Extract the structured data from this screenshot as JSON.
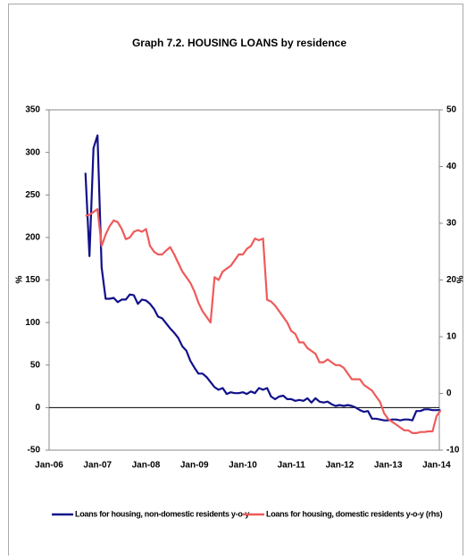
{
  "chart_data": {
    "type": "line",
    "title": "Graph 7.2. HOUSING LOANS by residence",
    "ylabel": "%",
    "y2label": "%",
    "categories": [
      "Jan-06",
      null,
      null,
      null,
      null,
      null,
      null,
      null,
      null,
      null,
      null,
      null,
      "Jan-07",
      null,
      null,
      null,
      null,
      null,
      null,
      null,
      null,
      null,
      null,
      null,
      "Jan-08",
      null,
      null,
      null,
      null,
      null,
      null,
      null,
      null,
      null,
      null,
      null,
      "Jan-09",
      null,
      null,
      null,
      null,
      null,
      null,
      null,
      null,
      null,
      null,
      null,
      "Jan-10",
      null,
      null,
      null,
      null,
      null,
      null,
      null,
      null,
      null,
      null,
      null,
      "Jan-11",
      null,
      null,
      null,
      null,
      null,
      null,
      null,
      null,
      null,
      null,
      null,
      "Jan-12",
      null,
      null,
      null,
      null,
      null,
      null,
      null,
      null,
      null,
      null,
      null,
      "Jan-13",
      null,
      null,
      null,
      null,
      null,
      null,
      null,
      null,
      null,
      null,
      null,
      "Jan-14",
      null
    ],
    "series": [
      {
        "name": "Loans for housing, non-domestic residents y-o-y",
        "color": "#10108a",
        "axis": "y",
        "values": [
          null,
          null,
          null,
          null,
          null,
          null,
          null,
          null,
          null,
          276,
          178,
          305,
          320,
          165,
          128,
          128,
          129,
          124,
          127,
          127,
          133,
          132,
          122,
          127,
          126,
          122,
          116,
          107,
          105,
          99,
          93,
          88,
          82,
          72,
          67,
          55,
          47,
          40,
          40,
          36,
          30,
          24,
          21,
          23,
          16,
          18,
          17,
          17,
          18,
          16,
          19,
          17,
          23,
          21,
          23,
          13,
          10,
          13,
          14,
          10,
          10,
          8,
          9,
          8,
          11,
          6,
          11,
          7,
          6,
          7,
          4,
          2,
          3,
          2,
          3,
          2,
          0,
          -3,
          -5,
          -4,
          -13,
          -13,
          -14,
          -15,
          -15,
          -14,
          -14,
          -15,
          -14,
          -14,
          -15,
          -4,
          -4,
          -2,
          -2,
          -3,
          -3,
          -3
        ]
      },
      {
        "name": "Loans for housing, domestic residents y-o-y (rhs)",
        "color": "#f05a5a",
        "axis": "y2",
        "values": [
          null,
          null,
          null,
          null,
          null,
          null,
          null,
          null,
          null,
          31.3,
          31.5,
          32,
          32.5,
          26,
          28,
          29.5,
          30.5,
          30.2,
          29,
          27.2,
          27.5,
          28.5,
          28.8,
          28.5,
          29,
          26,
          25,
          24.5,
          24.5,
          25.2,
          25.8,
          24.5,
          23,
          21.5,
          20.5,
          19.5,
          18,
          16,
          14.5,
          13.5,
          12.5,
          20.5,
          20,
          21.5,
          22,
          22.5,
          23.5,
          24.5,
          24.5,
          25.5,
          26,
          27.3,
          27,
          27.3,
          16.5,
          16.2,
          15.5,
          14.5,
          13.5,
          12.5,
          11,
          10.5,
          9,
          9,
          8,
          7.5,
          7,
          5.5,
          5.5,
          6,
          5.5,
          5,
          5,
          4.5,
          3.5,
          2.5,
          2.5,
          2.5,
          1.5,
          1,
          0.5,
          -0.5,
          -1.5,
          -3.5,
          -4.5,
          -5,
          -5.5,
          -6,
          -6.5,
          -6.5,
          -7,
          -7,
          -6.8,
          -6.8,
          -6.7,
          -6.7,
          -4,
          -3
        ]
      }
    ],
    "ylim": [
      -50,
      350
    ],
    "yticks": [
      -50,
      0,
      50,
      100,
      150,
      200,
      250,
      300,
      350
    ],
    "y2lim": [
      -10,
      50
    ],
    "y2ticks": [
      -10,
      0,
      10,
      20,
      30,
      40,
      50
    ],
    "grid": false,
    "legend": "bottom"
  }
}
